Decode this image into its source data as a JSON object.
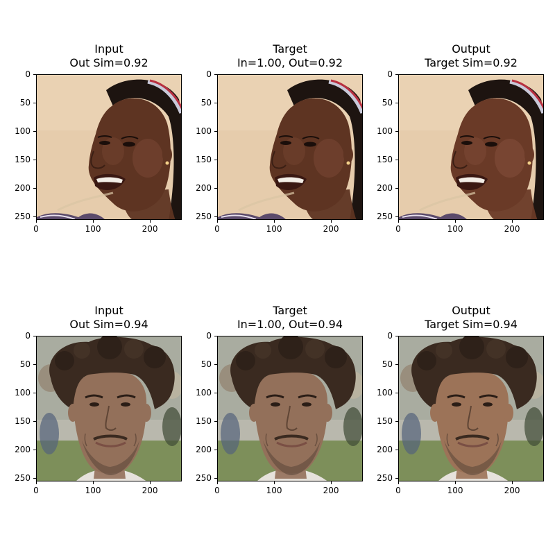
{
  "figure": {
    "rows": [
      {
        "panels": [
          {
            "title_line1": "Input",
            "title_line2": "Out Sim=0.92",
            "image": "face-woman-input"
          },
          {
            "title_line1": "Target",
            "title_line2": "In=1.00, Out=0.92",
            "image": "face-woman-target"
          },
          {
            "title_line1": "Output",
            "title_line2": "Target Sim=0.92",
            "image": "face-woman-output"
          }
        ]
      },
      {
        "panels": [
          {
            "title_line1": "Input",
            "title_line2": "Out Sim=0.94",
            "image": "face-man-input"
          },
          {
            "title_line1": "Target",
            "title_line2": "In=1.00, Out=0.94",
            "image": "face-man-target"
          },
          {
            "title_line1": "Output",
            "title_line2": "Target Sim=0.94",
            "image": "face-man-output"
          }
        ]
      }
    ],
    "x_ticks": [
      "0",
      "100",
      "200"
    ],
    "y_ticks": [
      "0",
      "50",
      "100",
      "150",
      "200",
      "250"
    ]
  }
}
